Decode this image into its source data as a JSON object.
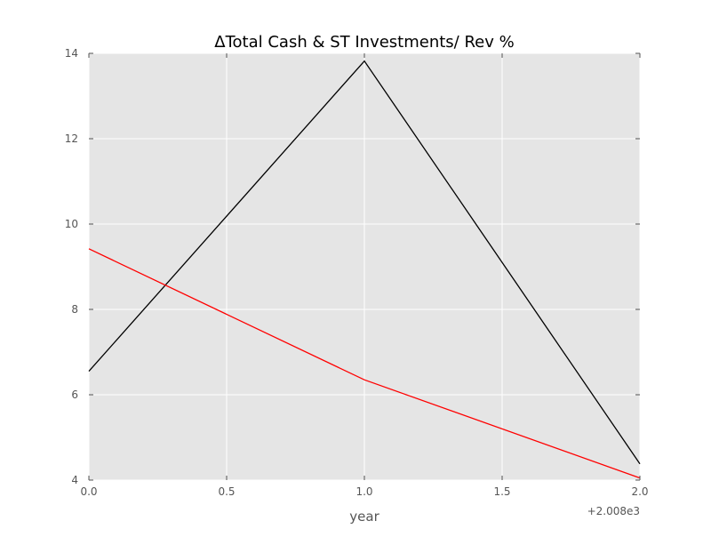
{
  "chart_data": {
    "type": "line",
    "title": "ΔTotal Cash & ST Investments/ Rev %",
    "xlabel": "year",
    "ylabel": "",
    "x_offset_label": "+2.008e3",
    "xlim": [
      0.0,
      2.0
    ],
    "ylim": [
      4,
      14
    ],
    "x_ticks": [
      "0.0",
      "0.5",
      "1.0",
      "1.5",
      "2.0"
    ],
    "y_ticks": [
      "4",
      "6",
      "8",
      "10",
      "12",
      "14"
    ],
    "grid": true,
    "legend": "none",
    "x": [
      0.0,
      1.0,
      2.0
    ],
    "series": [
      {
        "values": [
          6.55,
          13.82,
          4.38
        ],
        "color": "#000000"
      },
      {
        "values": [
          9.42,
          6.35,
          4.05
        ],
        "color": "#ff0000"
      }
    ]
  },
  "colors": {
    "plot_background": "#e5e5e5",
    "grid": "#ffffff",
    "tick_text": "#555555"
  }
}
